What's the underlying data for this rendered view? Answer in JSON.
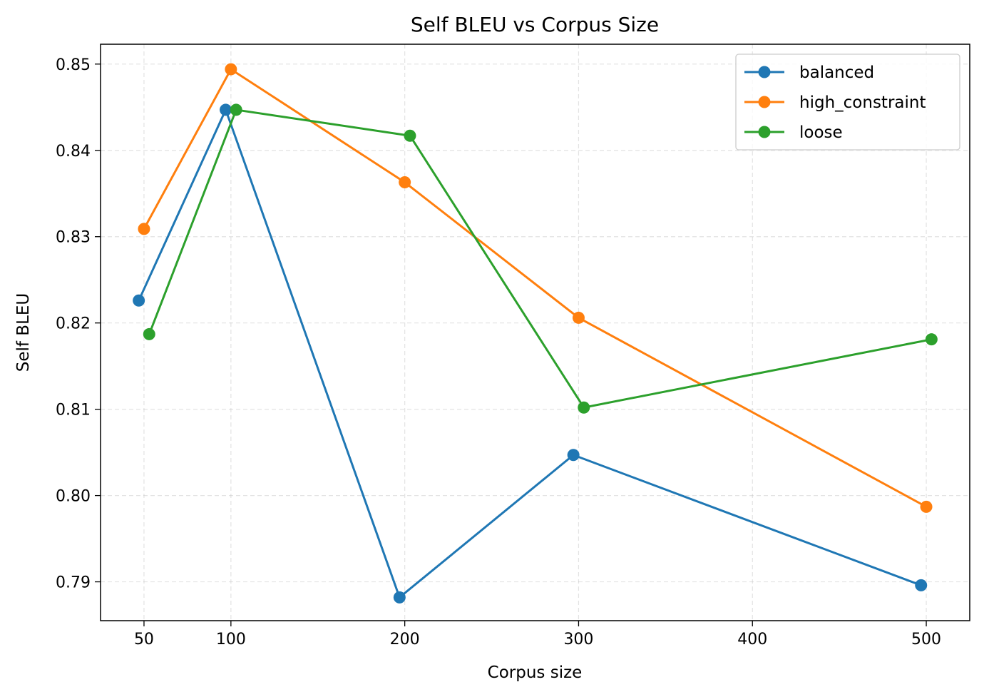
{
  "chart_data": {
    "type": "line",
    "title": "Self BLEU vs Corpus Size",
    "xlabel": "Corpus size",
    "ylabel": "Self BLEU",
    "xlim": [
      25,
      525
    ],
    "ylim": [
      0.7855,
      0.8523
    ],
    "xticks": [
      50,
      100,
      200,
      300,
      400,
      500
    ],
    "xtick_labels": [
      "50",
      "100",
      "200",
      "300",
      "400",
      "500"
    ],
    "yticks": [
      0.79,
      0.8,
      0.81,
      0.82,
      0.83,
      0.84,
      0.85
    ],
    "ytick_labels": [
      "0.79",
      "0.80",
      "0.81",
      "0.82",
      "0.83",
      "0.84",
      "0.85"
    ],
    "grid": true,
    "legend_position": "top-right",
    "series": [
      {
        "name": "balanced",
        "color": "#1f77b4",
        "x": [
          47,
          97,
          197,
          297,
          497
        ],
        "y": [
          0.8226,
          0.8447,
          0.7882,
          0.8047,
          0.7896
        ]
      },
      {
        "name": "high_constraint",
        "color": "#ff7f0e",
        "x": [
          50,
          100,
          200,
          300,
          500
        ],
        "y": [
          0.8309,
          0.8494,
          0.8363,
          0.8206,
          0.7987
        ]
      },
      {
        "name": "loose",
        "color": "#2ca02c",
        "x": [
          53,
          103,
          203,
          303,
          503
        ],
        "y": [
          0.8187,
          0.8447,
          0.8417,
          0.8102,
          0.8181
        ]
      }
    ]
  }
}
